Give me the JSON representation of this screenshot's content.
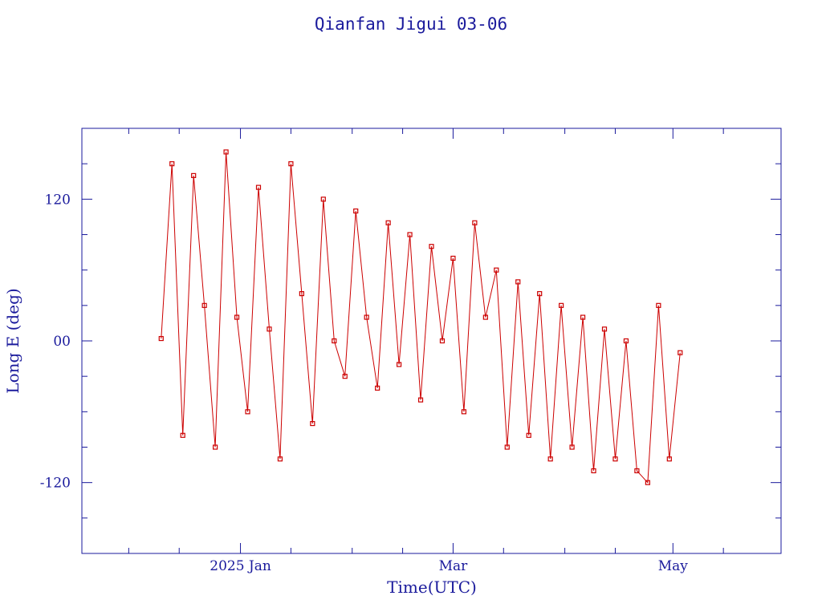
{
  "chart_data": {
    "type": "line",
    "title": "Qianfan Jigui 03-06",
    "xlabel": "Time(UTC)",
    "ylabel": "Long E (deg)",
    "ylim": [
      -180,
      180
    ],
    "yticks": [
      {
        "value": 120,
        "label": "120"
      },
      {
        "value": 0,
        "label": "00"
      },
      {
        "value": -120,
        "label": "-120"
      }
    ],
    "xlim": [
      "2024-11-18",
      "2025-05-31"
    ],
    "xticks": [
      {
        "date": "2025-01-01",
        "label": "2025 Jan"
      },
      {
        "date": "2025-03-01",
        "label": "Mar"
      },
      {
        "date": "2025-05-01",
        "label": "May"
      }
    ],
    "grid": false,
    "colors": {
      "axes": "#1a1a9c",
      "series": "#cc0000"
    },
    "series": [
      {
        "x": [
          "2024-12-10",
          "2024-12-13",
          "2024-12-16",
          "2024-12-19",
          "2024-12-22",
          "2024-12-25",
          "2024-12-28",
          "2024-12-31",
          "2025-01-03",
          "2025-01-06",
          "2025-01-09",
          "2025-01-12",
          "2025-01-15",
          "2025-01-18",
          "2025-01-21",
          "2025-01-24",
          "2025-01-27",
          "2025-01-30",
          "2025-02-02",
          "2025-02-05",
          "2025-02-08",
          "2025-02-11",
          "2025-02-14",
          "2025-02-17",
          "2025-02-20",
          "2025-02-23",
          "2025-02-26",
          "2025-03-01",
          "2025-03-04",
          "2025-03-07",
          "2025-03-10",
          "2025-03-13",
          "2025-03-16",
          "2025-03-19",
          "2025-03-22",
          "2025-03-25",
          "2025-03-28",
          "2025-03-31",
          "2025-04-03",
          "2025-04-06",
          "2025-04-09",
          "2025-04-12",
          "2025-04-15",
          "2025-04-18",
          "2025-04-21",
          "2025-04-24",
          "2025-04-27",
          "2025-04-30",
          "2025-05-03"
        ],
        "y": [
          2,
          150,
          -80,
          140,
          30,
          -90,
          160,
          20,
          -60,
          130,
          10,
          -100,
          150,
          40,
          -70,
          120,
          0,
          -30,
          110,
          20,
          -40,
          100,
          -20,
          90,
          -50,
          80,
          0,
          70,
          -60,
          100,
          20,
          60,
          -90,
          50,
          -80,
          40,
          -100,
          30,
          -90,
          20,
          -110,
          10,
          -100,
          0,
          -110,
          -120,
          30,
          -100,
          -10
        ]
      }
    ]
  }
}
